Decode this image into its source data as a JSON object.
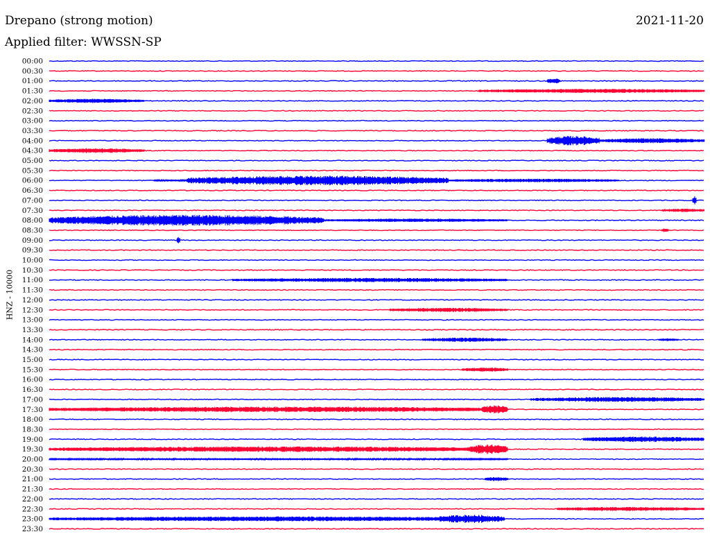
{
  "header": {
    "station": "Drepano (strong motion)",
    "date": "2021-11-20",
    "filter": "Applied filter: WWSSN-SP"
  },
  "axis": {
    "ylabel": "HNZ - 10000"
  },
  "colors": {
    "even_rows": "#0000ff",
    "odd_rows": "#ff0033",
    "background": "#ffffff"
  },
  "chart_data": {
    "type": "line",
    "title": "Drepano (strong motion)",
    "subtitle": "Applied filter: WWSSN-SP",
    "ylabel": "HNZ - 10000",
    "rows": [
      {
        "time": "00:00",
        "segments": []
      },
      {
        "time": "00:30",
        "segments": []
      },
      {
        "time": "01:00",
        "segments": [
          [
            0.76,
            0.78,
            4
          ]
        ]
      },
      {
        "time": "01:30",
        "segments": [
          [
            0.655,
            1.0,
            3
          ]
        ]
      },
      {
        "time": "02:00",
        "segments": [
          [
            0.0,
            0.145,
            3
          ]
        ]
      },
      {
        "time": "02:30",
        "segments": []
      },
      {
        "time": "03:00",
        "segments": []
      },
      {
        "time": "03:30",
        "segments": []
      },
      {
        "time": "04:00",
        "segments": [
          [
            0.76,
            0.84,
            7
          ],
          [
            0.84,
            1.0,
            3.5
          ]
        ]
      },
      {
        "time": "04:30",
        "segments": [
          [
            0.0,
            0.145,
            3.5
          ]
        ]
      },
      {
        "time": "05:00",
        "segments": []
      },
      {
        "time": "05:30",
        "segments": []
      },
      {
        "time": "06:00",
        "segments": [
          [
            0.16,
            0.21,
            1.5
          ],
          [
            0.21,
            0.61,
            7
          ],
          [
            0.61,
            0.87,
            2.5
          ]
        ]
      },
      {
        "time": "06:30",
        "segments": []
      },
      {
        "time": "07:00",
        "segments": [
          [
            0.982,
            0.988,
            6
          ]
        ]
      },
      {
        "time": "07:30",
        "segments": [
          [
            0.935,
            1.0,
            2.5
          ]
        ]
      },
      {
        "time": "08:00",
        "segments": [
          [
            0.0,
            0.42,
            8
          ],
          [
            0.42,
            0.7,
            2.5
          ]
        ]
      },
      {
        "time": "08:30",
        "segments": [
          [
            0.935,
            0.945,
            3
          ]
        ]
      },
      {
        "time": "09:00",
        "segments": [
          [
            0.195,
            0.2,
            5
          ]
        ]
      },
      {
        "time": "09:30",
        "segments": []
      },
      {
        "time": "10:00",
        "segments": []
      },
      {
        "time": "10:30",
        "segments": []
      },
      {
        "time": "11:00",
        "segments": [
          [
            0.28,
            0.7,
            3
          ]
        ]
      },
      {
        "time": "11:30",
        "segments": []
      },
      {
        "time": "12:00",
        "segments": []
      },
      {
        "time": "12:30",
        "segments": [
          [
            0.52,
            0.7,
            3
          ]
        ]
      },
      {
        "time": "13:00",
        "segments": []
      },
      {
        "time": "13:30",
        "segments": []
      },
      {
        "time": "14:00",
        "segments": [
          [
            0.57,
            0.7,
            3
          ],
          [
            0.93,
            0.96,
            2
          ]
        ]
      },
      {
        "time": "14:30",
        "segments": []
      },
      {
        "time": "15:00",
        "segments": []
      },
      {
        "time": "15:30",
        "segments": [
          [
            0.63,
            0.7,
            3
          ]
        ]
      },
      {
        "time": "16:00",
        "segments": []
      },
      {
        "time": "16:30",
        "segments": []
      },
      {
        "time": "17:00",
        "segments": [
          [
            0.735,
            1.0,
            3.5
          ]
        ]
      },
      {
        "time": "17:30",
        "segments": [
          [
            0.0,
            0.7,
            4
          ],
          [
            0.66,
            0.7,
            6
          ]
        ]
      },
      {
        "time": "18:00",
        "segments": []
      },
      {
        "time": "18:30",
        "segments": []
      },
      {
        "time": "19:00",
        "segments": [
          [
            0.815,
            1.0,
            4
          ]
        ]
      },
      {
        "time": "19:30",
        "segments": [
          [
            0.0,
            0.7,
            4
          ],
          [
            0.64,
            0.7,
            7
          ]
        ]
      },
      {
        "time": "20:00",
        "segments": [
          [
            0.0,
            0.7,
            1.5
          ]
        ]
      },
      {
        "time": "20:30",
        "segments": []
      },
      {
        "time": "21:00",
        "segments": [
          [
            0.665,
            0.7,
            3
          ]
        ]
      },
      {
        "time": "21:30",
        "segments": []
      },
      {
        "time": "22:00",
        "segments": []
      },
      {
        "time": "22:30",
        "segments": [
          [
            0.775,
            1.0,
            3
          ]
        ]
      },
      {
        "time": "23:00",
        "segments": [
          [
            0.0,
            0.695,
            3.5
          ],
          [
            0.59,
            0.695,
            6
          ]
        ]
      },
      {
        "time": "23:30",
        "segments": []
      }
    ]
  }
}
